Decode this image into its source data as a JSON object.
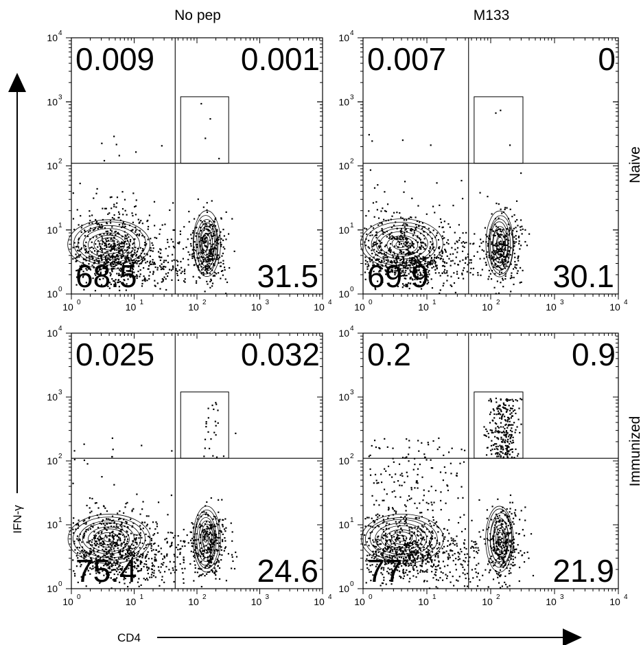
{
  "chart_data": {
    "type": "scatter",
    "description_scale": "log",
    "xlabel": "CD4",
    "ylabel": "IFN-γ",
    "xlim": [
      1,
      10000
    ],
    "ylim": [
      1,
      10000
    ],
    "xscale": "log",
    "yscale": "log",
    "x_tick_labels": [
      "10",
      "10",
      "10",
      "10",
      "10"
    ],
    "x_tick_exponents": [
      "0",
      "1",
      "2",
      "3",
      "4"
    ],
    "y_tick_labels": [
      "10",
      "10",
      "10",
      "10",
      "10"
    ],
    "y_tick_exponents": [
      "0",
      "1",
      "2",
      "3",
      "4"
    ],
    "grid": false,
    "columns": [
      "No pep",
      "M133"
    ],
    "rows": [
      "Naive",
      "Immunized"
    ],
    "quadrant_gates": {
      "x": 45,
      "y": 110
    },
    "cd4_ifng_gate": {
      "x": [
        55,
        320
      ],
      "y": [
        110,
        1200
      ]
    },
    "panels": [
      {
        "column": "No pep",
        "row": "Naive",
        "quadrants": {
          "upper_left": "0.009",
          "upper_right": "0.001",
          "lower_left": "68.5",
          "lower_right": "31.5"
        },
        "upper_left": 0.009,
        "upper_right": 0.001,
        "lower_left": 68.5,
        "lower_right": 31.5,
        "ifng_positive_scatter": 4
      },
      {
        "column": "M133",
        "row": "Naive",
        "quadrants": {
          "upper_left": "0.007",
          "upper_right": "0",
          "lower_left": "69.9",
          "lower_right": "30.1"
        },
        "upper_left": 0.007,
        "upper_right": 0,
        "lower_left": 69.9,
        "lower_right": 30.1,
        "ifng_positive_scatter": 3
      },
      {
        "column": "No pep",
        "row": "Immunized",
        "quadrants": {
          "upper_left": "0.025",
          "upper_right": "0.032",
          "lower_left": "75.4",
          "lower_right": "24.6"
        },
        "upper_left": 0.025,
        "upper_right": 0.032,
        "lower_left": 75.4,
        "lower_right": 24.6,
        "ifng_positive_scatter": 25
      },
      {
        "column": "M133",
        "row": "Immunized",
        "quadrants": {
          "upper_left": "0.2",
          "upper_right": "0.9",
          "lower_left": "77",
          "lower_right": "21.9"
        },
        "upper_left": 0.2,
        "upper_right": 0.9,
        "lower_left": 77,
        "lower_right": 21.9,
        "ifng_positive_scatter": 260
      }
    ]
  }
}
